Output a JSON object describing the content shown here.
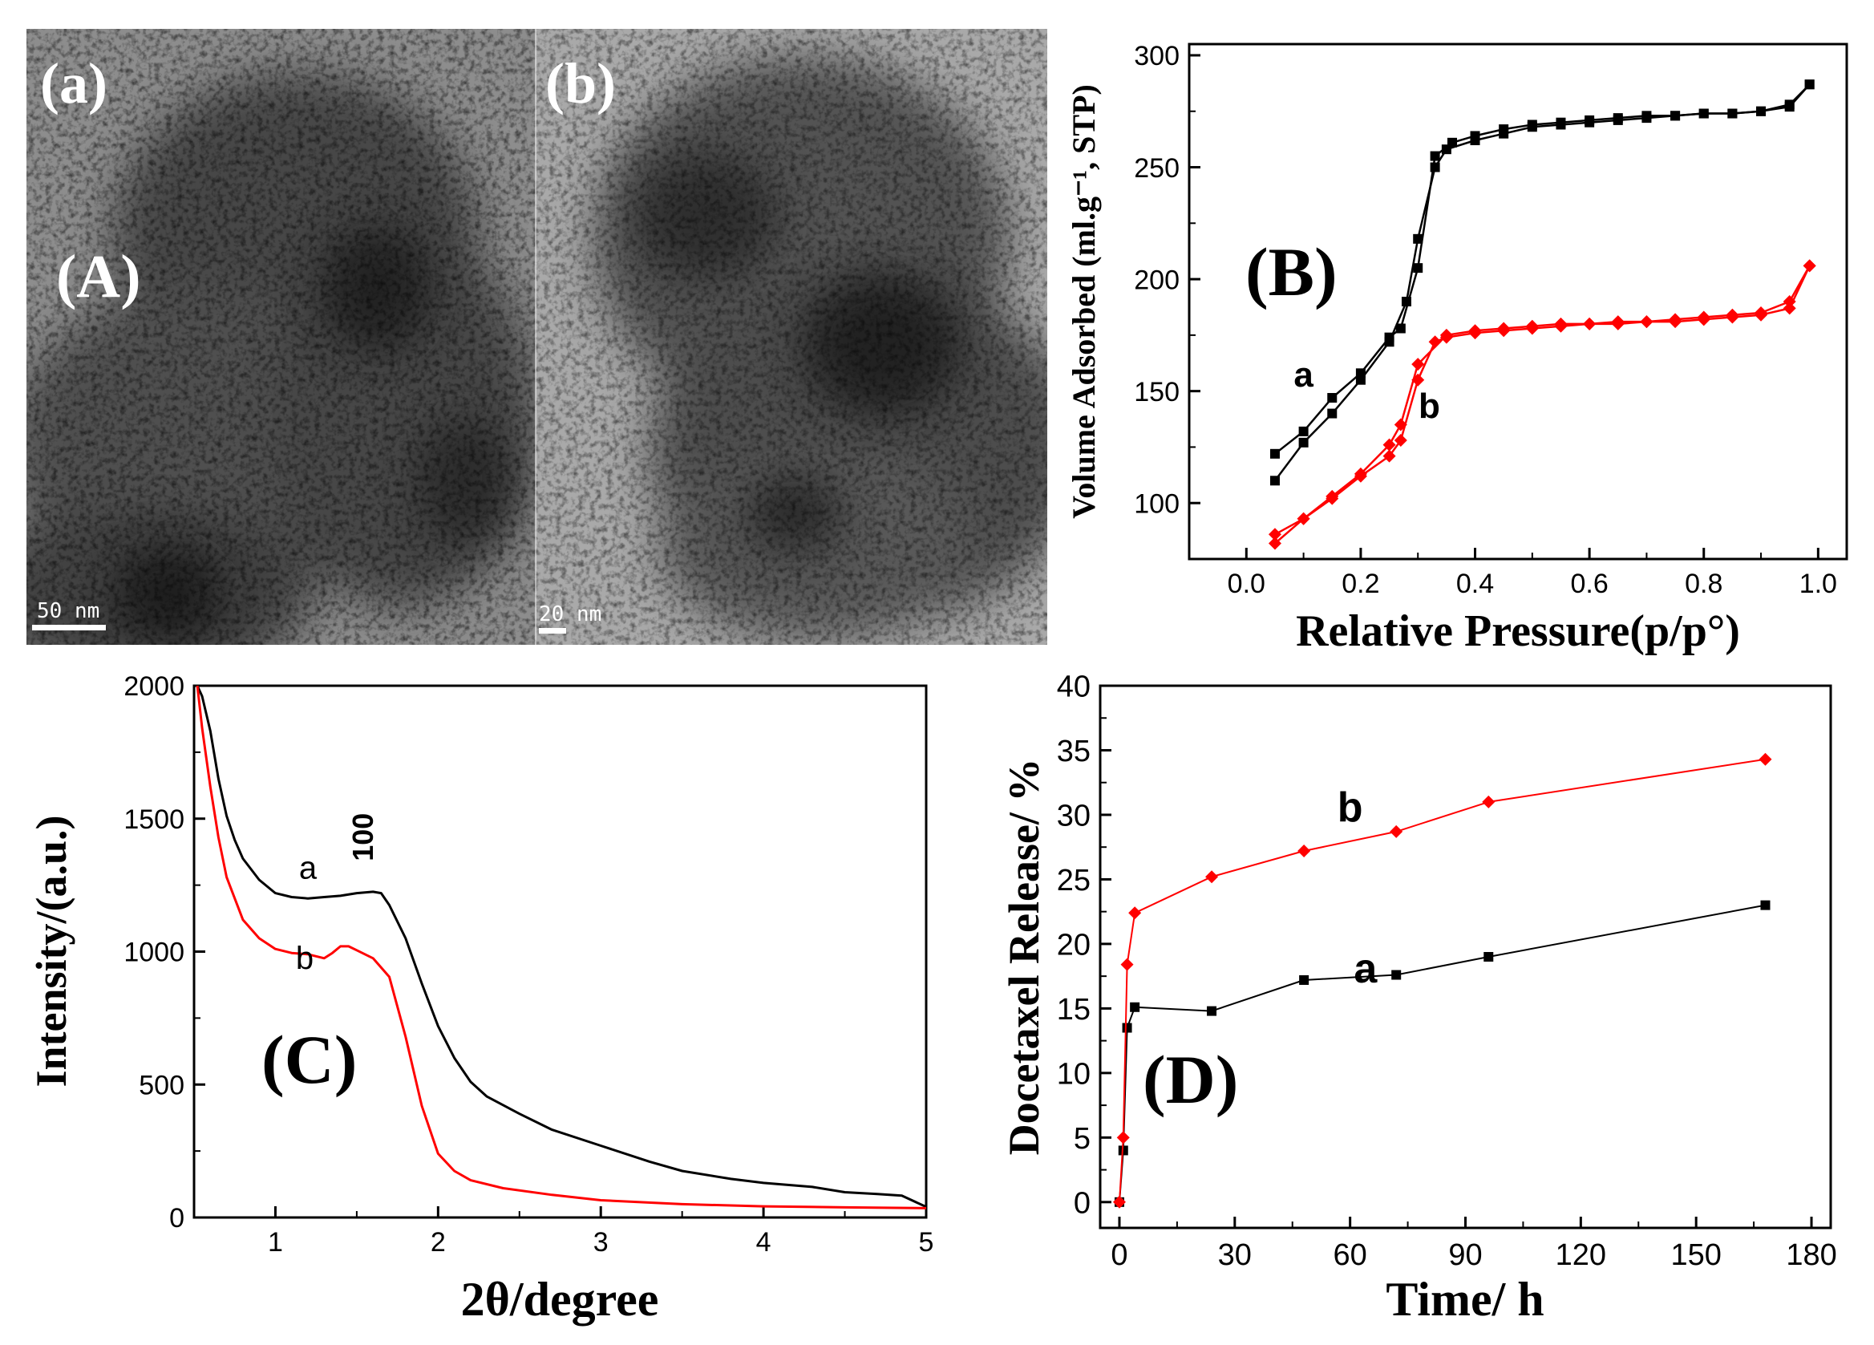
{
  "tem": {
    "panel_label": "(A)",
    "images": [
      {
        "label": "(a)",
        "scale_bar": "50 nm"
      },
      {
        "label": "(b)",
        "scale_bar": "20 nm"
      }
    ]
  },
  "chart_data": [
    {
      "id": "B",
      "type": "line",
      "panel_label": "(B)",
      "title": "",
      "xlabel": "Relative Pressure(p/p°)",
      "ylabel": "Volume Adsorbed (ml.g⁻¹, STP)",
      "xlim": [
        -0.1,
        1.05
      ],
      "ylim": [
        75,
        305
      ],
      "xticks": [
        0.0,
        0.2,
        0.4,
        0.6,
        0.8,
        1.0
      ],
      "xtick_labels": [
        "0.0",
        "0.2",
        "0.4",
        "0.6",
        "0.8",
        "1.0"
      ],
      "yticks": [
        100,
        150,
        200,
        250,
        300
      ],
      "ytick_labels": [
        "100",
        "150",
        "200",
        "250",
        "300"
      ],
      "series": [
        {
          "name": "a",
          "color": "#000000",
          "marker": "square",
          "adsorption": [
            [
              0.05,
              110
            ],
            [
              0.1,
              127
            ],
            [
              0.15,
              140
            ],
            [
              0.2,
              155
            ],
            [
              0.25,
              172
            ],
            [
              0.28,
              190
            ],
            [
              0.3,
              218
            ],
            [
              0.33,
              250
            ],
            [
              0.35,
              258
            ],
            [
              0.4,
              262
            ],
            [
              0.45,
              265
            ],
            [
              0.5,
              268
            ],
            [
              0.55,
              269
            ],
            [
              0.6,
              270
            ],
            [
              0.65,
              271
            ],
            [
              0.7,
              272
            ],
            [
              0.75,
              273
            ],
            [
              0.8,
              274
            ],
            [
              0.85,
              274
            ],
            [
              0.9,
              275
            ],
            [
              0.95,
              278
            ],
            [
              0.985,
              287
            ]
          ],
          "desorption": [
            [
              0.985,
              287
            ],
            [
              0.95,
              277
            ],
            [
              0.9,
              275
            ],
            [
              0.85,
              274
            ],
            [
              0.8,
              274
            ],
            [
              0.75,
              273
            ],
            [
              0.7,
              273
            ],
            [
              0.65,
              272
            ],
            [
              0.6,
              271
            ],
            [
              0.55,
              270
            ],
            [
              0.5,
              269
            ],
            [
              0.45,
              267
            ],
            [
              0.4,
              264
            ],
            [
              0.36,
              261
            ],
            [
              0.33,
              255
            ],
            [
              0.3,
              205
            ],
            [
              0.27,
              178
            ],
            [
              0.25,
              174
            ],
            [
              0.2,
              158
            ],
            [
              0.15,
              147
            ],
            [
              0.1,
              132
            ],
            [
              0.05,
              122
            ]
          ]
        },
        {
          "name": "b",
          "color": "#ff0000",
          "marker": "diamond",
          "adsorption": [
            [
              0.05,
              82
            ],
            [
              0.1,
              93
            ],
            [
              0.15,
              102
            ],
            [
              0.2,
              112
            ],
            [
              0.25,
              121
            ],
            [
              0.27,
              128
            ],
            [
              0.3,
              155
            ],
            [
              0.33,
              172
            ],
            [
              0.35,
              174
            ],
            [
              0.4,
              176
            ],
            [
              0.45,
              177
            ],
            [
              0.5,
              178
            ],
            [
              0.55,
              179
            ],
            [
              0.6,
              180
            ],
            [
              0.65,
              180
            ],
            [
              0.7,
              181
            ],
            [
              0.75,
              181
            ],
            [
              0.8,
              182
            ],
            [
              0.85,
              183
            ],
            [
              0.9,
              184
            ],
            [
              0.95,
              187
            ],
            [
              0.985,
              206
            ]
          ],
          "desorption": [
            [
              0.985,
              206
            ],
            [
              0.95,
              190
            ],
            [
              0.9,
              185
            ],
            [
              0.85,
              184
            ],
            [
              0.8,
              183
            ],
            [
              0.75,
              182
            ],
            [
              0.7,
              181
            ],
            [
              0.65,
              181
            ],
            [
              0.6,
              180
            ],
            [
              0.55,
              180
            ],
            [
              0.5,
              179
            ],
            [
              0.45,
              178
            ],
            [
              0.4,
              177
            ],
            [
              0.35,
              175
            ],
            [
              0.3,
              162
            ],
            [
              0.27,
              135
            ],
            [
              0.25,
              126
            ],
            [
              0.2,
              113
            ],
            [
              0.15,
              103
            ],
            [
              0.1,
              93
            ],
            [
              0.05,
              86
            ]
          ]
        }
      ],
      "annotations": [
        {
          "text": "a",
          "x": 0.1,
          "y": 152
        },
        {
          "text": "b",
          "x": 0.32,
          "y": 138
        }
      ]
    },
    {
      "id": "C",
      "type": "line",
      "panel_label": "(C)",
      "title": "",
      "xlabel": "2θ/degree",
      "ylabel": "Intensity/(a.u.)",
      "xlim": [
        0.5,
        5.0
      ],
      "ylim": [
        0,
        2000
      ],
      "xticks": [
        1,
        2,
        3,
        4,
        5
      ],
      "xtick_labels": [
        "1",
        "2",
        "3",
        "4",
        "5"
      ],
      "yticks": [
        0,
        500,
        1000,
        1500,
        2000
      ],
      "ytick_labels": [
        "0",
        "500",
        "1000",
        "1500",
        "2000"
      ],
      "series": [
        {
          "name": "a",
          "color": "#000000",
          "points": [
            [
              0.52,
              2000
            ],
            [
              0.55,
              1960
            ],
            [
              0.6,
              1830
            ],
            [
              0.65,
              1650
            ],
            [
              0.7,
              1510
            ],
            [
              0.75,
              1420
            ],
            [
              0.8,
              1350
            ],
            [
              0.9,
              1270
            ],
            [
              1.0,
              1220
            ],
            [
              1.1,
              1205
            ],
            [
              1.2,
              1200
            ],
            [
              1.3,
              1205
            ],
            [
              1.4,
              1210
            ],
            [
              1.5,
              1220
            ],
            [
              1.6,
              1225
            ],
            [
              1.65,
              1220
            ],
            [
              1.7,
              1175
            ],
            [
              1.8,
              1050
            ],
            [
              1.9,
              880
            ],
            [
              2.0,
              720
            ],
            [
              2.1,
              600
            ],
            [
              2.2,
              510
            ],
            [
              2.3,
              455
            ],
            [
              2.5,
              390
            ],
            [
              2.7,
              330
            ],
            [
              3.0,
              270
            ],
            [
              3.3,
              210
            ],
            [
              3.5,
              175
            ],
            [
              3.8,
              145
            ],
            [
              4.0,
              130
            ],
            [
              4.3,
              115
            ],
            [
              4.5,
              95
            ],
            [
              4.7,
              88
            ],
            [
              4.85,
              82
            ],
            [
              5.0,
              40
            ]
          ]
        },
        {
          "name": "b",
          "color": "#ff0000",
          "points": [
            [
              0.52,
              2000
            ],
            [
              0.55,
              1840
            ],
            [
              0.6,
              1620
            ],
            [
              0.65,
              1430
            ],
            [
              0.7,
              1280
            ],
            [
              0.8,
              1120
            ],
            [
              0.9,
              1050
            ],
            [
              1.0,
              1010
            ],
            [
              1.1,
              995
            ],
            [
              1.2,
              990
            ],
            [
              1.3,
              975
            ],
            [
              1.35,
              995
            ],
            [
              1.4,
              1020
            ],
            [
              1.45,
              1020
            ],
            [
              1.5,
              1005
            ],
            [
              1.6,
              975
            ],
            [
              1.7,
              905
            ],
            [
              1.8,
              680
            ],
            [
              1.9,
              420
            ],
            [
              2.0,
              240
            ],
            [
              2.1,
              175
            ],
            [
              2.2,
              140
            ],
            [
              2.4,
              110
            ],
            [
              2.7,
              85
            ],
            [
              3.0,
              65
            ],
            [
              3.5,
              50
            ],
            [
              4.0,
              42
            ],
            [
              4.5,
              38
            ],
            [
              5.0,
              35
            ]
          ]
        }
      ],
      "annotations": [
        {
          "text": "a",
          "x": 1.2,
          "y": 1275
        },
        {
          "text": "b",
          "x": 1.18,
          "y": 935
        },
        {
          "text": "100",
          "x": 1.6,
          "y": 1340
        }
      ]
    },
    {
      "id": "D",
      "type": "line",
      "panel_label": "(D)",
      "title": "",
      "xlabel": "Time/ h",
      "ylabel": "Docetaxel Release/ %",
      "xlim": [
        -5,
        185
      ],
      "ylim": [
        -2,
        40
      ],
      "xticks": [
        0,
        30,
        60,
        90,
        120,
        150,
        180
      ],
      "xtick_labels": [
        "0",
        "30",
        "60",
        "90",
        "120",
        "150",
        "180"
      ],
      "yticks": [
        0,
        5,
        10,
        15,
        20,
        25,
        30,
        35,
        40
      ],
      "ytick_labels": [
        "0",
        "5",
        "10",
        "15",
        "20",
        "25",
        "30",
        "35",
        "40"
      ],
      "series": [
        {
          "name": "a",
          "color": "#000000",
          "marker": "square",
          "points": [
            [
              0,
              0
            ],
            [
              1,
              4
            ],
            [
              2,
              13.5
            ],
            [
              4,
              15.1
            ],
            [
              24,
              14.8
            ],
            [
              48,
              17.2
            ],
            [
              72,
              17.6
            ],
            [
              96,
              19.0
            ],
            [
              168,
              23.0
            ]
          ]
        },
        {
          "name": "b",
          "color": "#ff0000",
          "marker": "diamond",
          "points": [
            [
              0,
              0
            ],
            [
              1,
              5
            ],
            [
              2,
              18.4
            ],
            [
              4,
              22.4
            ],
            [
              24,
              25.2
            ],
            [
              48,
              27.2
            ],
            [
              72,
              28.7
            ],
            [
              96,
              31.0
            ],
            [
              168,
              34.3
            ]
          ]
        }
      ],
      "annotations": [
        {
          "text": "a",
          "x": 64,
          "y": 17.0
        },
        {
          "text": "b",
          "x": 60,
          "y": 29.5
        }
      ]
    }
  ]
}
